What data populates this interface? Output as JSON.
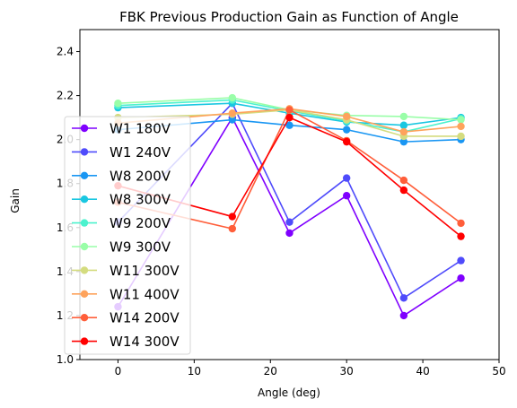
{
  "chart_data": {
    "type": "line",
    "title": "FBK Previous Production Gain as Function of Angle",
    "xlabel": "Angle (deg)",
    "ylabel": "Gain",
    "xlim": [
      -5,
      50
    ],
    "ylim": [
      1.0,
      2.5
    ],
    "xticks": [
      0,
      10,
      20,
      30,
      40,
      50
    ],
    "yticks": [
      1.0,
      1.2,
      1.4,
      1.6,
      1.8,
      2.0,
      2.2,
      2.4
    ],
    "grid": false,
    "legend_position": "left",
    "x": [
      0,
      15,
      22.5,
      30,
      37.5,
      45
    ],
    "series": [
      {
        "name": "W1 180V",
        "color": "#7f00ff",
        "values": [
          1.24,
          2.1,
          1.575,
          1.745,
          1.2,
          1.37
        ]
      },
      {
        "name": "W1 240V",
        "color": "#4f4bfb",
        "values": [
          1.625,
          2.165,
          1.625,
          1.825,
          1.28,
          1.45
        ]
      },
      {
        "name": "W8 200V",
        "color": "#1996f3",
        "values": [
          2.045,
          2.09,
          2.065,
          2.045,
          1.99,
          2.0
        ]
      },
      {
        "name": "W8 300V",
        "color": "#1ac7e1",
        "values": [
          2.145,
          2.165,
          2.12,
          2.08,
          2.065,
          2.1
        ]
      },
      {
        "name": "W9 200V",
        "color": "#4cf2ce",
        "values": [
          2.155,
          2.18,
          2.13,
          2.085,
          2.035,
          2.095
        ]
      },
      {
        "name": "W9 300V",
        "color": "#99fea8",
        "values": [
          2.165,
          2.19,
          2.135,
          2.11,
          2.105,
          2.09
        ]
      },
      {
        "name": "W11 300V",
        "color": "#d4dc7f",
        "values": [
          2.1,
          2.115,
          2.135,
          2.09,
          2.015,
          2.015
        ]
      },
      {
        "name": "W11 400V",
        "color": "#fea35c",
        "values": [
          2.075,
          2.12,
          2.14,
          2.105,
          2.035,
          2.06
        ]
      },
      {
        "name": "W14 200V",
        "color": "#ff5e3a",
        "values": [
          1.715,
          1.595,
          2.135,
          1.995,
          1.815,
          1.62
        ]
      },
      {
        "name": "W14 300V",
        "color": "#ff0000",
        "values": [
          1.79,
          1.65,
          2.1,
          1.99,
          1.77,
          1.56
        ]
      }
    ]
  }
}
